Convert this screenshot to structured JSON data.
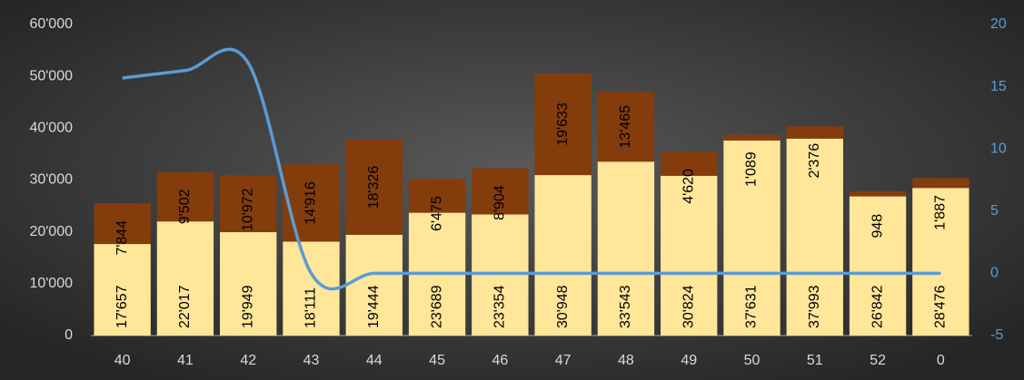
{
  "chart_data": {
    "type": "bar",
    "categories": [
      "40",
      "41",
      "42",
      "43",
      "44",
      "45",
      "46",
      "47",
      "48",
      "49",
      "50",
      "51",
      "52",
      "0"
    ],
    "series": [
      {
        "color": "#ffe699",
        "values": [
          17657,
          22017,
          19949,
          18111,
          19444,
          23689,
          23354,
          30948,
          33543,
          30824,
          37631,
          37993,
          26842,
          28476
        ],
        "value_labels": [
          "17'657",
          "22'017",
          "19'949",
          "18'111",
          "19'444",
          "23'689",
          "23'354",
          "30'948",
          "33'543",
          "30'824",
          "37'631",
          "37'993",
          "26'842",
          "28'476"
        ]
      },
      {
        "color": "#843c0c",
        "values": [
          7844,
          9502,
          10972,
          14916,
          18326,
          6475,
          8904,
          19633,
          13465,
          4620,
          1089,
          2376,
          948,
          1887
        ],
        "value_labels": [
          "7'844",
          "9'502",
          "10'972",
          "14'916",
          "18'326",
          "6'475",
          "8'904",
          "19'633",
          "13'465",
          "4'620",
          "1'089",
          "2'376",
          "948",
          "1'887"
        ]
      },
      {
        "type": "line",
        "axis": "y2",
        "color": "#5b9bd5",
        "values": [
          15.7,
          16.3,
          16.9,
          0,
          0,
          0,
          0,
          0,
          0,
          0,
          0,
          0,
          0,
          0
        ]
      }
    ],
    "stacked": true,
    "ylim": [
      0,
      60000
    ],
    "yticks": [
      0,
      {
        "value": 10000,
        "label": "10'000"
      },
      {
        "value": 20000,
        "label": "20'000"
      },
      {
        "value": 30000,
        "label": "30'000"
      },
      {
        "value": 40000,
        "label": "40'000"
      },
      {
        "value": 50000,
        "label": "50'000"
      },
      {
        "value": 60000,
        "label": "60'000"
      }
    ],
    "y2lim": [
      -5,
      20
    ],
    "y2ticks": [
      -5,
      0,
      5,
      10,
      15,
      20
    ]
  }
}
